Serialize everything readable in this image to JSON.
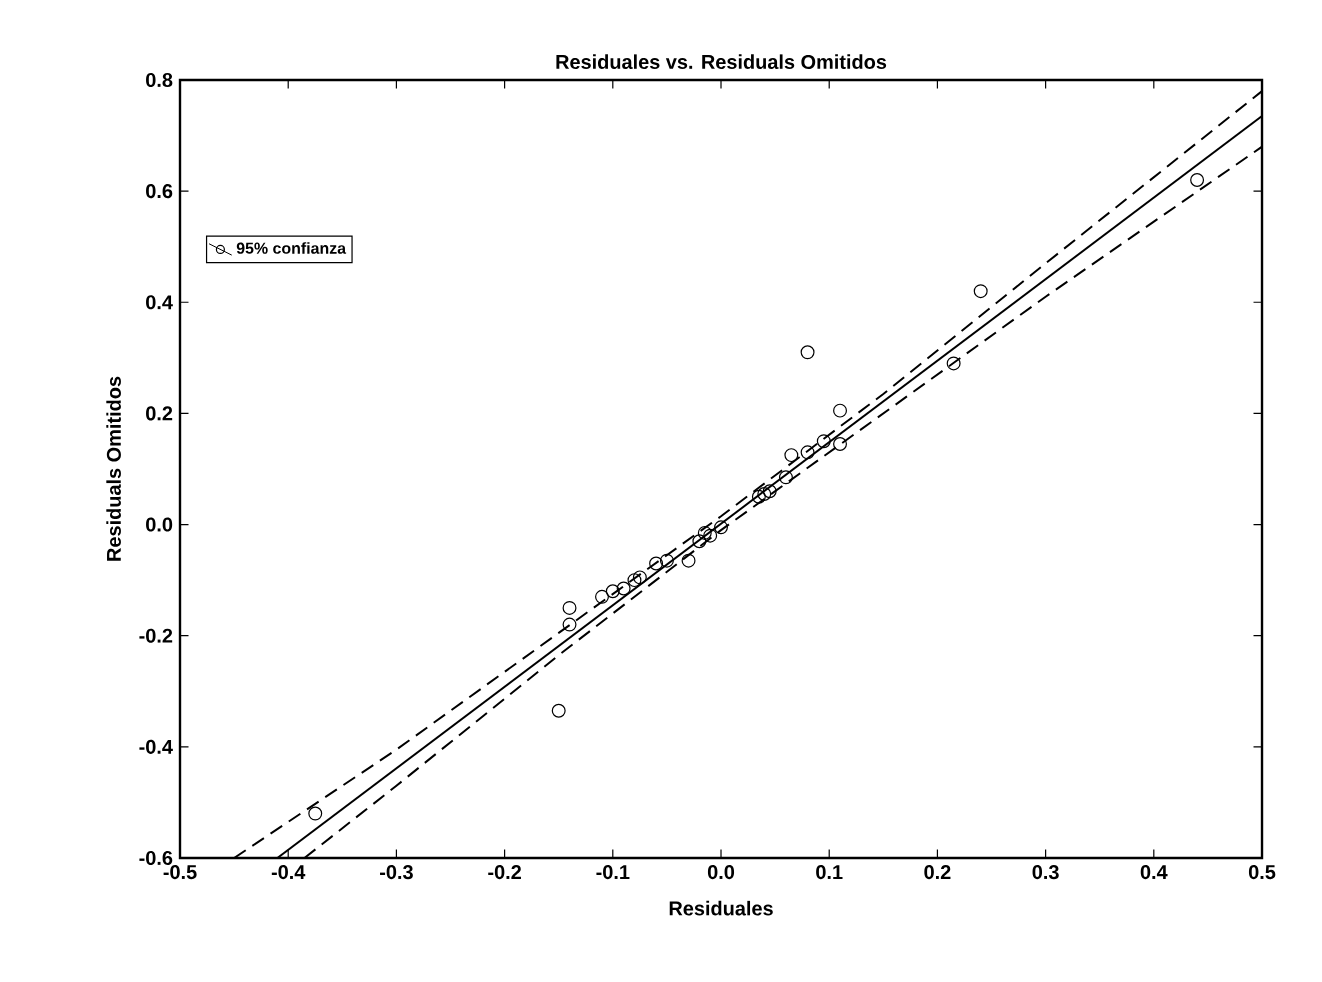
{
  "chart_data": {
    "type": "scatter",
    "title": "Residuales vs. Residuals Omitidos",
    "xlabel": "Residuales",
    "ylabel": "Residuals Omitidos",
    "xlim": [
      -0.5,
      0.5
    ],
    "ylim": [
      -0.6,
      0.8
    ],
    "xticks": [
      -0.5,
      -0.4,
      -0.3,
      -0.2,
      -0.1,
      {
        "value": 0,
        "label": "0.0"
      },
      0.1,
      0.2,
      0.3,
      0.4,
      0.5
    ],
    "yticks": [
      -0.6,
      -0.4,
      -0.2,
      {
        "value": 0,
        "label": "0.0"
      },
      0.2,
      0.4,
      0.6,
      0.8
    ],
    "grid": false,
    "legend": "top left",
    "series": [
      {
        "name": "95% confianza",
        "marker": "circle",
        "color": "#000000",
        "x": [
          -0.375,
          -0.14,
          -0.14,
          -0.15,
          -0.11,
          -0.1,
          -0.09,
          -0.08,
          -0.075,
          -0.06,
          -0.05,
          -0.03,
          -0.02,
          -0.015,
          -0.01,
          0.0,
          0.035,
          0.04,
          0.045,
          0.06,
          0.065,
          0.08,
          0.08,
          0.095,
          0.11,
          0.11,
          0.215,
          0.24,
          0.44
        ],
        "values": [
          -0.52,
          -0.15,
          -0.18,
          -0.335,
          -0.13,
          -0.12,
          -0.115,
          -0.1,
          -0.095,
          -0.07,
          -0.065,
          -0.065,
          -0.03,
          -0.015,
          -0.02,
          -0.005,
          0.05,
          0.055,
          0.06,
          0.085,
          0.125,
          0.13,
          0.31,
          0.15,
          0.205,
          0.145,
          0.29,
          0.42,
          0.62
        ]
      },
      {
        "type": "line",
        "line_style": "solid",
        "color": "#000000",
        "x": [
          -0.41,
          0.5
        ],
        "values": [
          -0.6,
          0.735
        ]
      },
      {
        "type": "line",
        "line_style": "dashed",
        "color": "#000000",
        "x": [
          -0.45,
          -0.3,
          -0.15,
          0.0,
          0.15,
          0.3,
          0.5
        ],
        "values": [
          -0.6,
          -0.405,
          -0.195,
          0.015,
          0.235,
          0.47,
          0.78
        ]
      },
      {
        "type": "line",
        "line_style": "dashed",
        "color": "#000000",
        "x": [
          -0.385,
          -0.3,
          -0.15,
          0.0,
          0.15,
          0.3,
          0.5
        ],
        "values": [
          -0.6,
          -0.47,
          -0.235,
          -0.01,
          0.2,
          0.41,
          0.68
        ]
      }
    ]
  }
}
